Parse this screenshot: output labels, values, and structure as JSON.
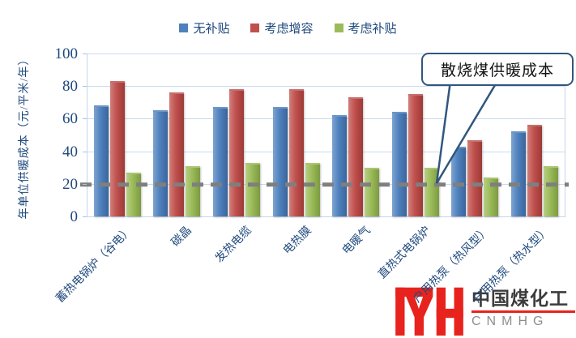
{
  "chart_data": {
    "type": "bar",
    "title": "",
    "categories": [
      "蓄热电锅炉（谷电）",
      "碳晶",
      "发热电缆",
      "电热膜",
      "电暖气",
      "直热式电锅炉",
      "户用热泵（热风型）",
      "户用热泵（热水型）"
    ],
    "series": [
      {
        "name": "无补贴",
        "color": "#4F81BD",
        "values": [
          68,
          65,
          67,
          67,
          62,
          64,
          43,
          52
        ]
      },
      {
        "name": "考虑增容",
        "color": "#C0504D",
        "values": [
          83,
          76,
          78,
          78,
          73,
          75,
          47,
          56
        ]
      },
      {
        "name": "考虑补贴",
        "color": "#9BBB59",
        "values": [
          27,
          31,
          33,
          33,
          30,
          30,
          24,
          31
        ]
      }
    ],
    "xlabel": "",
    "ylabel": "年单位供暖成本（元/平米/年）",
    "yticks": [
      0,
      20,
      40,
      60,
      80,
      100
    ],
    "ylim": [
      0,
      100
    ],
    "grid": true,
    "legend_position": "top",
    "reference_line": {
      "value": 20,
      "style": "dashed",
      "color": "#7F7F7F",
      "label": "散烧煤供暖成本"
    }
  },
  "annotation": {
    "text": "散烧煤供暖成本"
  },
  "y_axis": {
    "title": "年单位供暖成本（元/平米/年）"
  },
  "logo": {
    "company": "中国煤化工",
    "abbr": "CNMHG",
    "mark": "MYH",
    "accent_color": "#E8231D"
  }
}
